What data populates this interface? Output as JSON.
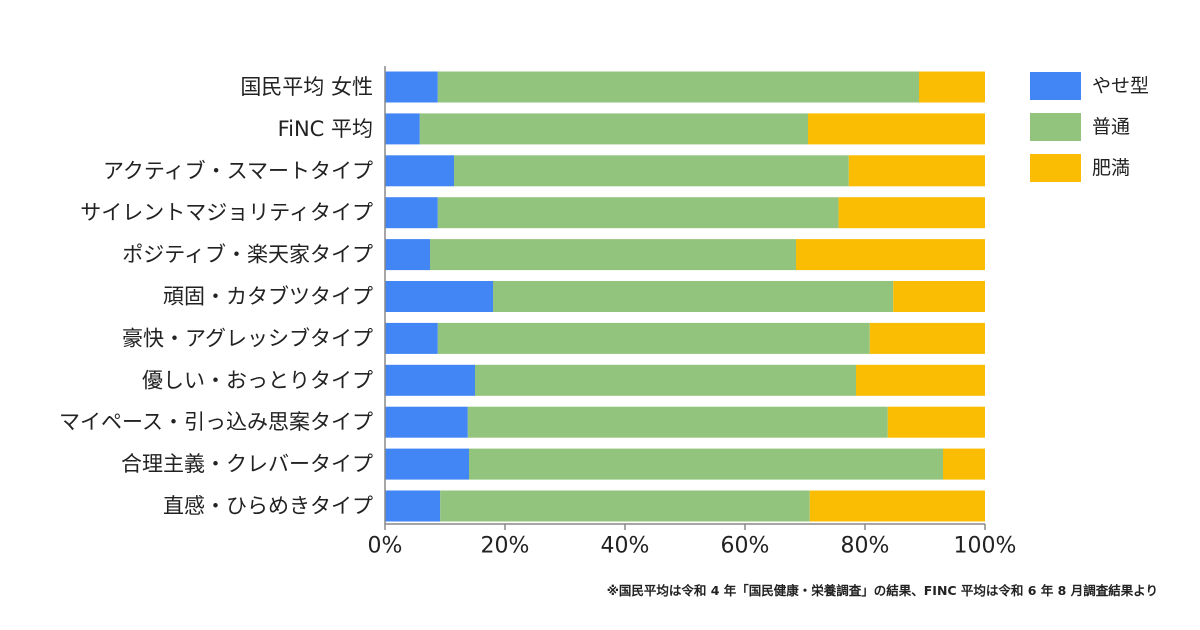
{
  "chart_data": {
    "type": "bar",
    "orientation": "horizontal",
    "stacked": true,
    "normalized": true,
    "categories": [
      "国民平均 女性",
      "FiNC 平均",
      "アクティブ・スマートタイプ",
      "サイレントマジョリティタイプ",
      "ポジティブ・楽天家タイプ",
      "頑固・カタブツタイプ",
      "豪快・アグレッシブタイプ",
      "優しい・おっとりタイプ",
      "マイペース・引っ込み思案タイプ",
      "合理主義・クレバータイプ",
      "直感・ひらめきタイプ"
    ],
    "series": [
      {
        "name": "やせ型",
        "color": "#4285f4",
        "values": [
          8.8,
          5.8,
          11.5,
          8.8,
          7.5,
          18.0,
          8.8,
          15.0,
          13.8,
          14.0,
          9.2
        ]
      },
      {
        "name": "普通",
        "color": "#93c47d",
        "values": [
          80.2,
          64.7,
          65.8,
          66.8,
          61.0,
          66.7,
          72.0,
          63.5,
          70.0,
          79.0,
          61.6
        ]
      },
      {
        "name": "肥満",
        "color": "#fbbc04",
        "values": [
          11.0,
          29.5,
          22.7,
          24.4,
          31.5,
          15.3,
          19.2,
          21.5,
          16.2,
          7.0,
          29.2
        ]
      }
    ],
    "xlim": [
      0,
      100
    ],
    "xticks": [
      "0%",
      "20%",
      "40%",
      "60%",
      "80%",
      "100%"
    ],
    "legend_position": "right-top",
    "grid": false
  },
  "footnote": "※国民平均は令和 4 年「国民健康・栄養調査」の結果、FINC 平均は令和 6 年 8 月調査結果より"
}
